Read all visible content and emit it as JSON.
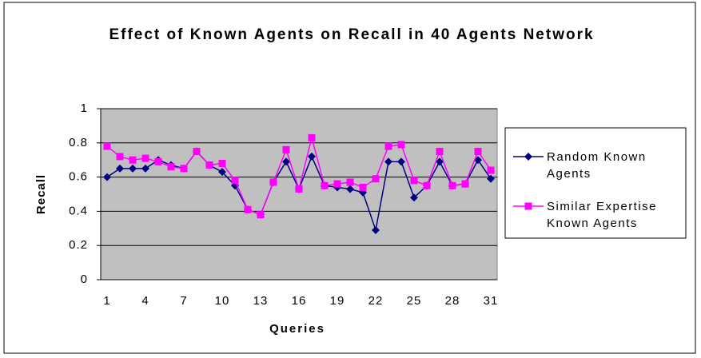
{
  "chart_data": {
    "type": "line",
    "title": "Effect of Known Agents on Recall in 40 Agents Network",
    "x_label": "Queries",
    "y_label": "Recall",
    "categories": [
      1,
      null,
      null,
      4,
      null,
      null,
      7,
      null,
      null,
      10,
      null,
      null,
      13,
      null,
      null,
      16,
      null,
      null,
      19,
      null,
      null,
      22,
      null,
      null,
      25,
      null,
      null,
      28,
      null,
      null,
      31
    ],
    "series": [
      {
        "name": "Random Known Agents",
        "color": "#000080",
        "marker": "diamond",
        "values": [
          0.6,
          0.65,
          0.65,
          0.65,
          0.7,
          0.67,
          0.65,
          0.75,
          0.67,
          0.63,
          0.55,
          0.41,
          0.38,
          0.57,
          0.69,
          0.53,
          0.72,
          0.55,
          0.54,
          0.53,
          0.51,
          0.29,
          0.69,
          0.69,
          0.48,
          0.55,
          0.69,
          0.55,
          0.56,
          0.7,
          0.59
        ]
      },
      {
        "name": "Similar Expertise Known Agents",
        "color": "#ff00ff",
        "marker": "square",
        "values": [
          0.78,
          0.72,
          0.7,
          0.71,
          0.69,
          0.66,
          0.65,
          0.75,
          0.67,
          0.68,
          0.58,
          0.41,
          0.38,
          0.57,
          0.76,
          0.53,
          0.83,
          0.55,
          0.56,
          0.57,
          0.54,
          0.59,
          0.78,
          0.79,
          0.58,
          0.55,
          0.75,
          0.55,
          0.56,
          0.75,
          0.64
        ]
      }
    ],
    "ylim": [
      0,
      1
    ],
    "yticks": [
      0,
      0.2,
      0.4,
      0.6,
      0.8,
      1
    ],
    "grid": true,
    "legend": "right"
  }
}
